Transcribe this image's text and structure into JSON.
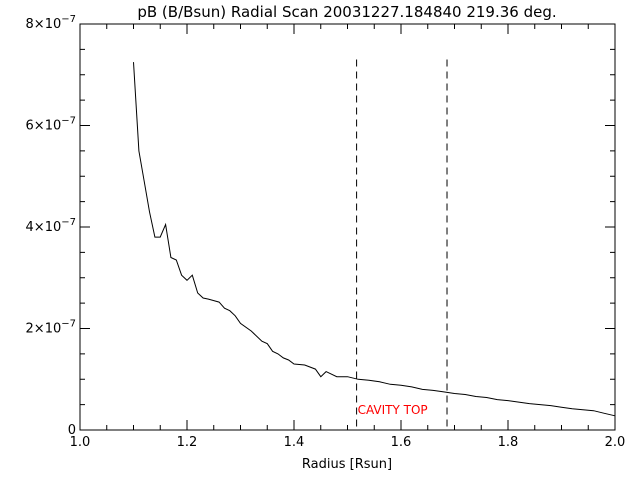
{
  "chart_data": {
    "type": "line",
    "title": "pB (B/Bsun) Radial Scan 20031227.184840 219.36 deg.",
    "xlabel": "Radius [Rsun]",
    "ylabel": "",
    "xlim": [
      1.0,
      2.0
    ],
    "ylim": [
      0,
      8e-07
    ],
    "x_ticks": [
      {
        "value": 1.0,
        "label": "1.0"
      },
      {
        "value": 1.2,
        "label": "1.2"
      },
      {
        "value": 1.4,
        "label": "1.4"
      },
      {
        "value": 1.6,
        "label": "1.6"
      },
      {
        "value": 1.8,
        "label": "1.8"
      },
      {
        "value": 2.0,
        "label": "2.0"
      }
    ],
    "y_ticks": [
      {
        "value": 0,
        "mantissa": "0",
        "exponent": ""
      },
      {
        "value": 2e-07,
        "mantissa": "2×10",
        "exponent": "−7"
      },
      {
        "value": 4e-07,
        "mantissa": "4×10",
        "exponent": "−7"
      },
      {
        "value": 6e-07,
        "mantissa": "6×10",
        "exponent": "−7"
      },
      {
        "value": 8e-07,
        "mantissa": "8×10",
        "exponent": "−7"
      }
    ],
    "grid": false,
    "series": [
      {
        "x": [
          1.1,
          1.11,
          1.12,
          1.13,
          1.14,
          1.15,
          1.16,
          1.17,
          1.18,
          1.19,
          1.2,
          1.21,
          1.22,
          1.23,
          1.24,
          1.25,
          1.26,
          1.27,
          1.28,
          1.29,
          1.3,
          1.32,
          1.34,
          1.35,
          1.36,
          1.37,
          1.38,
          1.39,
          1.4,
          1.42,
          1.44,
          1.45,
          1.46,
          1.48,
          1.5,
          1.52,
          1.54,
          1.56,
          1.58,
          1.6,
          1.62,
          1.64,
          1.66,
          1.68,
          1.7,
          1.72,
          1.74,
          1.76,
          1.78,
          1.8,
          1.82,
          1.84,
          1.86,
          1.88,
          1.9,
          1.92,
          1.94,
          1.96,
          1.98,
          2.0
        ],
        "y": [
          7.25e-07,
          5.5e-07,
          4.9e-07,
          4.3e-07,
          3.8e-07,
          3.8e-07,
          4.05e-07,
          3.4e-07,
          3.35e-07,
          3.05e-07,
          2.95e-07,
          3.05e-07,
          2.7e-07,
          2.6e-07,
          2.58e-07,
          2.55e-07,
          2.52e-07,
          2.4e-07,
          2.35e-07,
          2.25e-07,
          2.1e-07,
          1.95e-07,
          1.75e-07,
          1.7e-07,
          1.55e-07,
          1.5e-07,
          1.42e-07,
          1.38e-07,
          1.3e-07,
          1.28e-07,
          1.2e-07,
          1.05e-07,
          1.15e-07,
          1.05e-07,
          1.05e-07,
          1e-07,
          9.8e-08,
          9.5e-08,
          9e-08,
          8.8e-08,
          8.5e-08,
          8e-08,
          7.8e-08,
          7.5e-08,
          7.2e-08,
          7e-08,
          6.6e-08,
          6.4e-08,
          6e-08,
          5.8e-08,
          5.5e-08,
          5.2e-08,
          5e-08,
          4.8e-08,
          4.5e-08,
          4.2e-08,
          4e-08,
          3.8e-08,
          3.3e-08,
          2.8e-08
        ]
      }
    ],
    "vertical_lines": [
      1.517,
      1.686
    ],
    "vline_y_top": 7.3e-07,
    "annotation": {
      "text": "CAVITY TOP",
      "x": 1.517,
      "y": 3.2e-08,
      "color": "#ff0000"
    }
  }
}
